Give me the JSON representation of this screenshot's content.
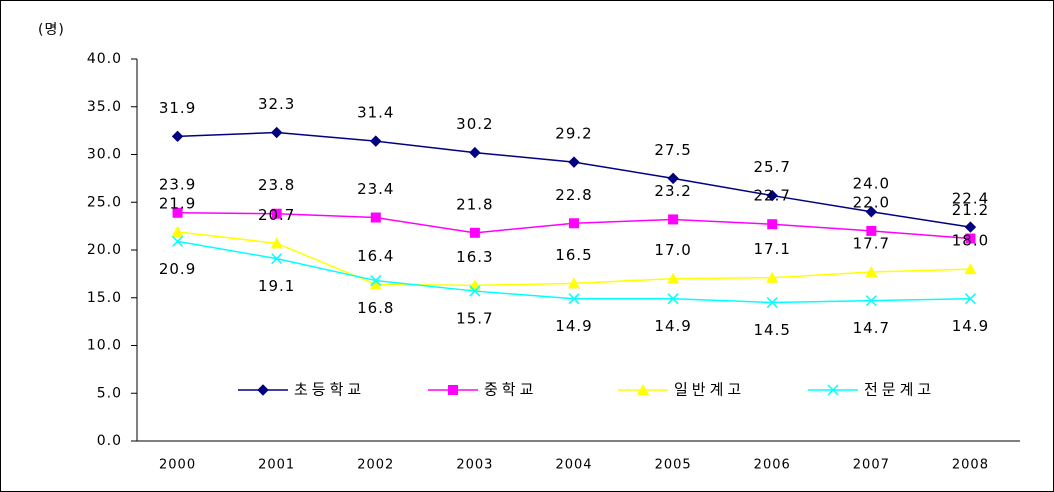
{
  "chart_data": {
    "type": "line",
    "y_label": "(명)",
    "categories": [
      "2000",
      "2001",
      "2002",
      "2003",
      "2004",
      "2005",
      "2006",
      "2007",
      "2008"
    ],
    "series": [
      {
        "name": "초등학교",
        "color": "#000080",
        "marker": "diamond",
        "label_side": "above",
        "values": [
          31.9,
          32.3,
          31.4,
          30.2,
          29.2,
          27.5,
          25.7,
          24.0,
          22.4
        ],
        "value_labels": [
          "31.9",
          "32.3",
          "31.4",
          "30.2",
          "29.2",
          "27.5",
          "25.7",
          "24.0",
          "22.4"
        ]
      },
      {
        "name": "중학교",
        "color": "#ff00ff",
        "marker": "square",
        "label_side": "above",
        "values": [
          23.9,
          23.8,
          23.4,
          21.8,
          22.8,
          23.2,
          22.7,
          22.0,
          21.2
        ],
        "value_labels": [
          "23.9",
          "23.8",
          "23.4",
          "21.8",
          "22.8",
          "23.2",
          "22.7",
          "22.0",
          "21.2"
        ]
      },
      {
        "name": "일반계고",
        "color": "#ffff00",
        "marker": "triangle",
        "label_side": "above",
        "values": [
          21.9,
          20.7,
          16.4,
          16.3,
          16.5,
          17.0,
          17.1,
          17.7,
          18.0
        ],
        "value_labels": [
          "21.9",
          "20.7",
          "16.4",
          "16.3",
          "16.5",
          "17.0",
          "17.1",
          "17.7",
          "18.0"
        ]
      },
      {
        "name": "전문계고",
        "color": "#00ffff",
        "marker": "x",
        "label_side": "below",
        "values": [
          20.9,
          19.1,
          16.8,
          15.7,
          14.9,
          14.9,
          14.5,
          14.7,
          14.9
        ],
        "value_labels": [
          "20.9",
          "19.1",
          "16.8",
          "15.7",
          "14.9",
          "14.9",
          "14.5",
          "14.7",
          "14.9"
        ]
      }
    ],
    "ylim": [
      0,
      40
    ],
    "yticks": [
      {
        "value": 0,
        "label": "0.0"
      },
      {
        "value": 5,
        "label": "5.0"
      },
      {
        "value": 10,
        "label": "10.0"
      },
      {
        "value": 15,
        "label": "15.0"
      },
      {
        "value": 20,
        "label": "20.0"
      },
      {
        "value": 25,
        "label": "25.0"
      },
      {
        "value": 30,
        "label": "30.0"
      },
      {
        "value": 35,
        "label": "35.0"
      },
      {
        "value": 40,
        "label": "40.0"
      }
    ],
    "grid": false,
    "legend": "bottom-center"
  }
}
